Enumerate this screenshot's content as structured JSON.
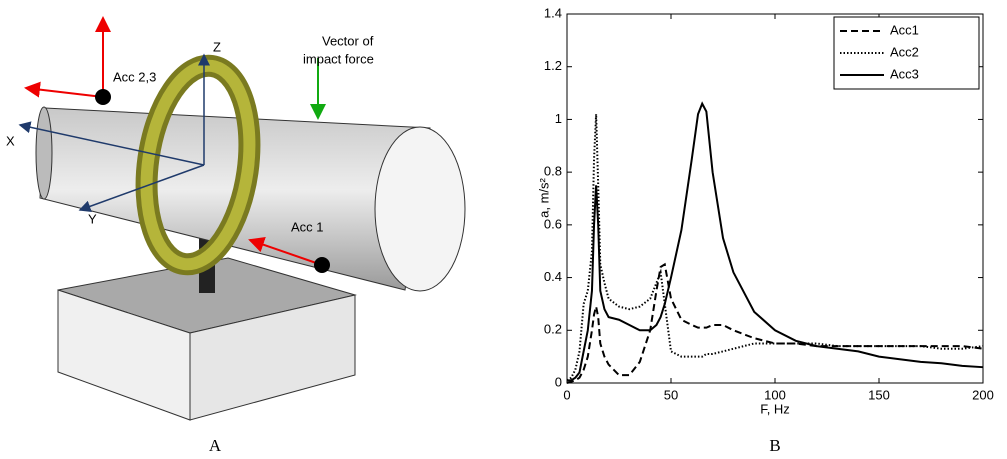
{
  "panel_labels": [
    "A",
    "B"
  ],
  "diagram": {
    "labels": [
      "Acc 2,3",
      "Z",
      "Vector of",
      "impact force",
      "X",
      "Y",
      "Acc 1"
    ]
  },
  "chart_data": {
    "type": "line",
    "xlabel": "F, Hz",
    "ylabel": "a, m/s²",
    "x": [
      0,
      2,
      4,
      6,
      8,
      10,
      12,
      13,
      14,
      15,
      16,
      18,
      20,
      25,
      30,
      35,
      40,
      43,
      45,
      47,
      50,
      55,
      60,
      63,
      65,
      67,
      70,
      75,
      80,
      90,
      100,
      110,
      120,
      130,
      140,
      150,
      160,
      170,
      180,
      190,
      200
    ],
    "series": [
      {
        "name": "Acc1",
        "color": "#000000",
        "dash": "dashed",
        "values": [
          0,
          0.005,
          0.01,
          0.02,
          0.05,
          0.1,
          0.2,
          0.26,
          0.29,
          0.25,
          0.15,
          0.1,
          0.07,
          0.03,
          0.03,
          0.08,
          0.2,
          0.35,
          0.44,
          0.45,
          0.32,
          0.24,
          0.22,
          0.21,
          0.21,
          0.21,
          0.22,
          0.22,
          0.2,
          0.17,
          0.15,
          0.15,
          0.14,
          0.14,
          0.14,
          0.14,
          0.14,
          0.14,
          0.14,
          0.14,
          0.13
        ]
      },
      {
        "name": "Acc2",
        "color": "#000000",
        "dash": "dotted",
        "values": [
          0.01,
          0.02,
          0.05,
          0.12,
          0.3,
          0.35,
          0.5,
          0.85,
          1.02,
          0.75,
          0.45,
          0.38,
          0.32,
          0.29,
          0.28,
          0.29,
          0.32,
          0.38,
          0.42,
          0.3,
          0.12,
          0.1,
          0.1,
          0.1,
          0.1,
          0.11,
          0.11,
          0.12,
          0.13,
          0.15,
          0.15,
          0.15,
          0.15,
          0.14,
          0.14,
          0.14,
          0.14,
          0.14,
          0.13,
          0.13,
          0.14
        ]
      },
      {
        "name": "Acc3",
        "color": "#000000",
        "dash": "solid",
        "values": [
          0.01,
          0.01,
          0.02,
          0.04,
          0.12,
          0.2,
          0.35,
          0.6,
          0.75,
          0.6,
          0.35,
          0.28,
          0.25,
          0.24,
          0.22,
          0.2,
          0.2,
          0.22,
          0.25,
          0.3,
          0.4,
          0.58,
          0.85,
          1.02,
          1.06,
          1.03,
          0.8,
          0.55,
          0.42,
          0.27,
          0.2,
          0.16,
          0.14,
          0.13,
          0.12,
          0.1,
          0.09,
          0.08,
          0.075,
          0.065,
          0.06
        ]
      }
    ],
    "xlim": [
      0,
      200
    ],
    "xticks": [
      0,
      50,
      100,
      150,
      200
    ],
    "ylim": [
      0,
      1.4
    ],
    "yticks": [
      0,
      0.2,
      0.4,
      0.6,
      0.8,
      1,
      1.2,
      1.4
    ],
    "grid": false,
    "legend": "upper-right"
  }
}
